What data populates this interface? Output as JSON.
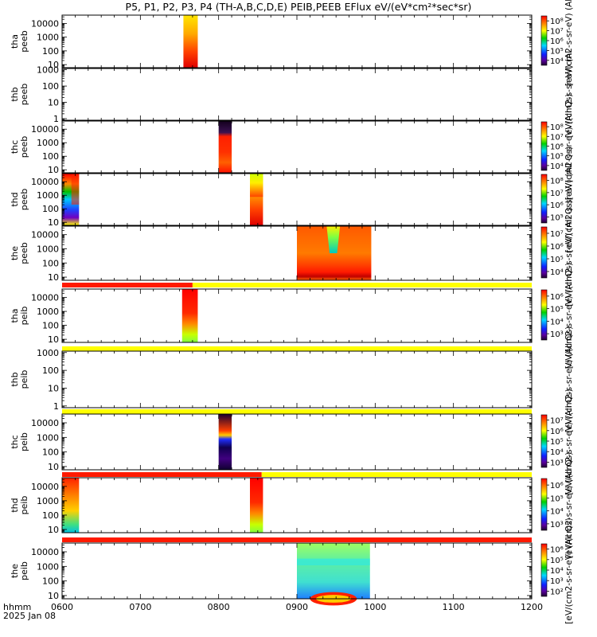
{
  "title": "P5, P1, P2, P3, P4 (TH-A,B,C,D,E) PEIB,PEEB EFlux eV/(eV*cm²*sec*sr)",
  "xaxis": {
    "date_label": "hhmm",
    "date_sub": "2025 Jan 08",
    "ticks": [
      "0600",
      "0700",
      "0800",
      "0900",
      "1000",
      "1100",
      "1200"
    ]
  },
  "colors": {
    "flag_red": "#ff1a00",
    "flag_yellow": "#ffff00"
  },
  "chart_data": [
    {
      "type": "heatmap",
      "id": "tha_peeb",
      "ylabel": [
        "tha",
        "peeb"
      ],
      "yscale": "log",
      "ylim": [
        6,
        40000
      ],
      "yticks": [
        "10",
        "100",
        "1000",
        "10000"
      ],
      "colorbar": {
        "label": "eV/(cm2-s-sr-eV) (All",
        "ticks": [
          "10⁴",
          "10⁵",
          "10⁶",
          "10⁷",
          "10⁸"
        ]
      },
      "blocks": [
        {
          "start": "07:33",
          "end": "07:44",
          "style": "yellow-red"
        }
      ]
    },
    {
      "type": "heatmap",
      "id": "thb_peeb",
      "ylabel": [
        "thb",
        "peeb"
      ],
      "yscale": "log",
      "ylim": [
        0.8,
        1200
      ],
      "yticks": [
        "1",
        "10",
        "100",
        "1000"
      ],
      "colorbar": {
        "label": "eV/(cm2-s-sr-eV) (Al",
        "ticks": []
      },
      "blocks": []
    },
    {
      "type": "heatmap",
      "id": "thc_peeb",
      "ylabel": [
        "thc",
        "peeb"
      ],
      "yscale": "log",
      "ylim": [
        6,
        40000
      ],
      "yticks": [
        "10",
        "100",
        "1000",
        "10000"
      ],
      "colorbar": {
        "label": "eV/(cm2-s-sr-eV) (All Qs)",
        "ticks": [
          "10⁴",
          "10⁵",
          "10⁶",
          "10⁷",
          "10⁸"
        ]
      },
      "blocks": [
        {
          "start": "08:00",
          "end": "08:10",
          "style": "dark-red"
        }
      ]
    },
    {
      "type": "heatmap",
      "id": "thd_peeb",
      "ylabel": [
        "thd",
        "peeb"
      ],
      "yscale": "log",
      "ylim": [
        6,
        40000
      ],
      "yticks": [
        "10",
        "100",
        "1000",
        "10000"
      ],
      "colorbar": {
        "label": "eV/(cm2-s-sr-eV) (All Qs)",
        "ticks": [
          "10⁵",
          "10⁶",
          "10⁷",
          "10⁸"
        ]
      },
      "blocks": [
        {
          "start": "06:00",
          "end": "06:13",
          "style": "rainbow"
        },
        {
          "start": "08:24",
          "end": "08:34",
          "style": "yellow-red"
        }
      ]
    },
    {
      "type": "heatmap",
      "id": "the_peeb",
      "ylabel": [
        "the",
        "peeb"
      ],
      "yscale": "log",
      "ylim": [
        6,
        40000
      ],
      "yticks": [
        "10",
        "100",
        "1000",
        "10000"
      ],
      "colorbar": {
        "label": "eV/(cm2-s-sr-eV) (All Qs)",
        "ticks": [
          "10⁴",
          "10⁵",
          "10⁶",
          "10⁷"
        ]
      },
      "blocks": [
        {
          "start": "09:00",
          "end": "09:57",
          "style": "the-e"
        }
      ]
    },
    {
      "type": "heatmap",
      "id": "tha_peib",
      "ylabel": [
        "tha",
        "peib"
      ],
      "yscale": "log",
      "ylim": [
        6,
        40000
      ],
      "yticks": [
        "10",
        "100",
        "1000",
        "10000"
      ],
      "colorbar": {
        "label": "eV/(cm2-s-sr-eV) (All Qs)",
        "ticks": [
          "10³",
          "10⁴",
          "10⁵",
          "10⁶"
        ]
      },
      "flag": [
        {
          "start": "06:00",
          "end": "07:40",
          "color": "red"
        },
        {
          "start": "07:40",
          "end": "12:00",
          "color": "yellow"
        }
      ],
      "blocks": [
        {
          "start": "07:32",
          "end": "07:44",
          "style": "ion-red"
        }
      ]
    },
    {
      "type": "heatmap",
      "id": "thb_peib",
      "ylabel": [
        "thb",
        "peib"
      ],
      "yscale": "log",
      "ylim": [
        0.8,
        1200
      ],
      "yticks": [
        "1",
        "10",
        "100",
        "1000"
      ],
      "colorbar": {
        "label": "eV/(cm2-s-sr-eV) (All Qs)",
        "ticks": []
      },
      "flag": [
        {
          "start": "06:00",
          "end": "12:00",
          "color": "yellow"
        }
      ],
      "blocks": []
    },
    {
      "type": "heatmap",
      "id": "thc_peib",
      "ylabel": [
        "thc",
        "peib"
      ],
      "yscale": "log",
      "ylim": [
        6,
        40000
      ],
      "yticks": [
        "10",
        "100",
        "1000",
        "10000"
      ],
      "colorbar": {
        "label": "eV/(cm2-s-sr-eV) (All Qs)",
        "ticks": [
          "10³",
          "10⁴",
          "10⁵",
          "10⁶",
          "10⁷"
        ]
      },
      "flag": [
        {
          "start": "06:00",
          "end": "12:00",
          "color": "yellow"
        }
      ],
      "blocks": [
        {
          "start": "08:00",
          "end": "08:10",
          "style": "ion-mix"
        }
      ]
    },
    {
      "type": "heatmap",
      "id": "thd_peib",
      "ylabel": [
        "thd",
        "peib"
      ],
      "yscale": "log",
      "ylim": [
        6,
        40000
      ],
      "yticks": [
        "10",
        "100",
        "1000",
        "10000"
      ],
      "colorbar": {
        "label": "eV/(cm2-s-sr-eV) (All Qs)",
        "ticks": [
          "10³",
          "10⁴",
          "10⁵",
          "10⁶"
        ]
      },
      "flag": [
        {
          "start": "06:00",
          "end": "08:33",
          "color": "red"
        },
        {
          "start": "08:33",
          "end": "12:00",
          "color": "yellow"
        }
      ],
      "blocks": [
        {
          "start": "06:00",
          "end": "06:13",
          "style": "ion-warm"
        },
        {
          "start": "08:24",
          "end": "08:34",
          "style": "ion-red"
        }
      ]
    },
    {
      "type": "heatmap",
      "id": "the_peib",
      "ylabel": [
        "the",
        "peib"
      ],
      "yscale": "log",
      "ylim": [
        6,
        40000
      ],
      "yticks": [
        "10",
        "100",
        "1000",
        "10000"
      ],
      "colorbar": {
        "label": "eV/(cm2-s-sr-eV) (All Qs)",
        "ticks": [
          "10²",
          "10³",
          "10⁴",
          "10⁵",
          "10⁶"
        ]
      },
      "flag": [
        {
          "start": "06:00",
          "end": "12:00",
          "color": "red"
        }
      ],
      "blocks": [
        {
          "start": "09:00",
          "end": "09:56",
          "style": "the-i"
        }
      ]
    }
  ]
}
